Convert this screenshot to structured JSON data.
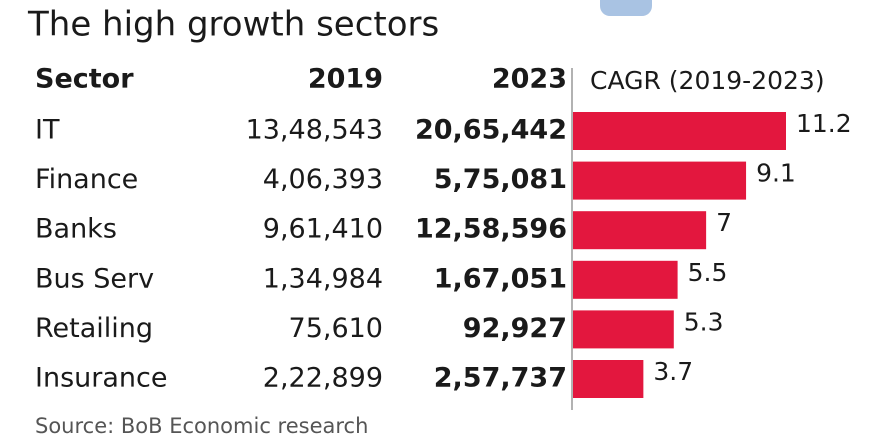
{
  "title": "The high growth sectors",
  "table": {
    "columns": [
      "Sector",
      "2019",
      "2023"
    ],
    "rows": [
      [
        "IT",
        "13,48,543",
        "20,65,442"
      ],
      [
        "Finance",
        "4,06,393",
        "5,75,081"
      ],
      [
        "Banks",
        "9,61,410",
        "12,58,596"
      ],
      [
        "Bus Serv",
        "1,34,984",
        "1,67,051"
      ],
      [
        "Retailing",
        "75,610",
        "92,927"
      ],
      [
        "Insurance",
        "2,22,899",
        "2,57,737"
      ]
    ]
  },
  "chart_data": {
    "type": "bar",
    "orientation": "horizontal",
    "title": "CAGR (2019-2023)",
    "values": [
      11.2,
      9.1,
      7,
      5.5,
      5.3,
      3.7
    ],
    "color": "#e3173e"
  },
  "source": "Source: BoB Economic research"
}
